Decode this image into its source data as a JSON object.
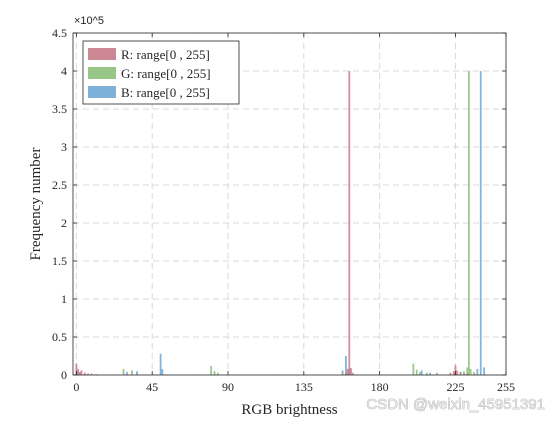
{
  "chart_data": {
    "type": "bar",
    "title": "",
    "xlabel": "RGB brightness",
    "ylabel": "Frequency number",
    "y_multiplier": "×10^5",
    "xlim": [
      -2,
      255
    ],
    "ylim": [
      0,
      450000
    ],
    "x_ticks": [
      0,
      45,
      90,
      135,
      180,
      225,
      255
    ],
    "y_ticks": [
      0,
      50000,
      100000,
      150000,
      200000,
      250000,
      300000,
      350000,
      400000,
      450000
    ],
    "y_tick_labels": [
      "0",
      "0.5",
      "1",
      "1.5",
      "2",
      "2.5",
      "3",
      "3.5",
      "4",
      "4.5"
    ],
    "grid": true,
    "grid_style": "dashed",
    "legend_position": "top-left",
    "series": [
      {
        "name": "R: range[0 , 255]",
        "color": "#c97b8a",
        "x": [
          0,
          1,
          2,
          3,
          5,
          7,
          9,
          12,
          160,
          161,
          162,
          163,
          164,
          222,
          224,
          225,
          226,
          228,
          232
        ],
        "y": [
          15000,
          8000,
          4000,
          6000,
          3000,
          2000,
          2000,
          1000,
          3000,
          8000,
          400000,
          9000,
          3000,
          3000,
          5000,
          13000,
          6000,
          4000,
          2000
        ]
      },
      {
        "name": "G: range[0 , 255]",
        "color": "#8dc07a",
        "x": [
          28,
          33,
          80,
          82,
          84,
          158,
          200,
          202,
          204,
          208,
          214,
          230,
          232,
          233,
          234,
          236
        ],
        "y": [
          8000,
          6000,
          12000,
          5000,
          3000,
          4000,
          15000,
          7000,
          4000,
          3000,
          3000,
          5000,
          10000,
          400000,
          8000,
          4000
        ]
      },
      {
        "name": "B: range[0 , 255]",
        "color": "#6fa8d6",
        "x": [
          0,
          1,
          30,
          36,
          50,
          51,
          158,
          160,
          162,
          205,
          210,
          228,
          230,
          238,
          240,
          242
        ],
        "y": [
          5000,
          3000,
          4000,
          5000,
          28000,
          8000,
          6000,
          25000,
          9000,
          6000,
          3000,
          4000,
          3000,
          8000,
          400000,
          10000
        ]
      }
    ]
  },
  "watermark": "CSDN @weixin_45951391"
}
